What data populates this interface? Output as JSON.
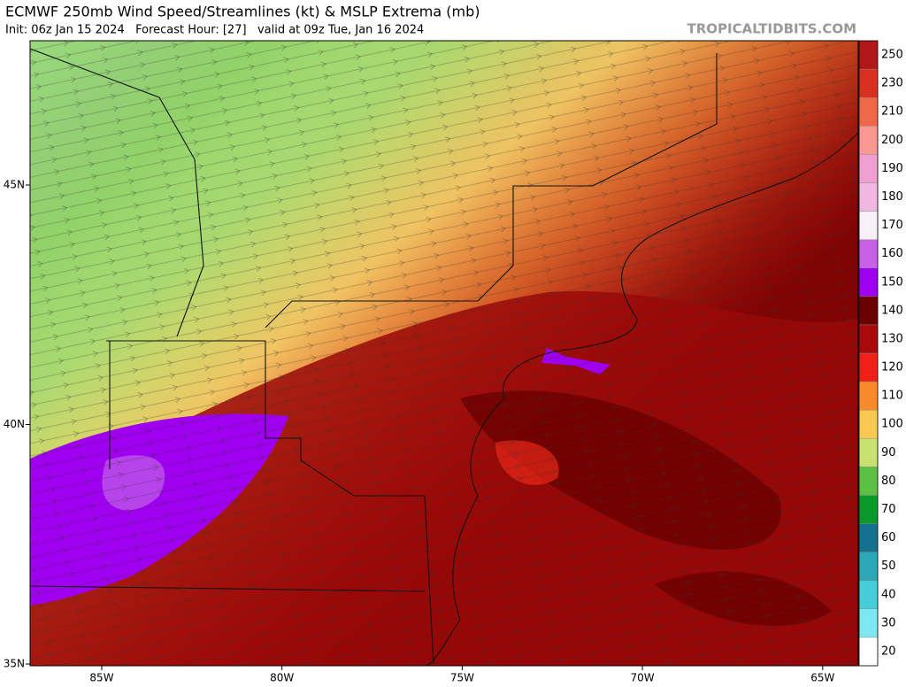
{
  "header": {
    "title": "ECMWF 250mb Wind Speed/Streamlines (kt) & MSLP Extrema (mb)",
    "subtitle": "Init: 06z Jan 15 2024   Forecast Hour: [27]   valid at 09z Tue, Jan 16 2024",
    "watermark": "TROPICALTIDBITS.COM"
  },
  "map": {
    "lon_labels": [
      "85W",
      "80W",
      "75W",
      "70W",
      "65W"
    ],
    "lat_labels": [
      "45N",
      "40N",
      "35N"
    ]
  },
  "colorbar": {
    "labels": [
      20,
      30,
      40,
      50,
      60,
      70,
      80,
      90,
      100,
      110,
      120,
      130,
      140,
      150,
      160,
      170,
      180,
      190,
      200,
      210,
      230,
      250
    ],
    "colors": [
      "#ffffff",
      "#7ee8f0",
      "#45cdd8",
      "#2aa8b8",
      "#13728f",
      "#0a9a2a",
      "#5cc044",
      "#c8e070",
      "#f8c850",
      "#f88a2a",
      "#f02018",
      "#a80a0a",
      "#6a0000",
      "#a000f0",
      "#c860e8",
      "#f8f0f8",
      "#f0b8e0",
      "#f0a0d0",
      "#f89890",
      "#f06848",
      "#d83020",
      "#b01818"
    ]
  }
}
